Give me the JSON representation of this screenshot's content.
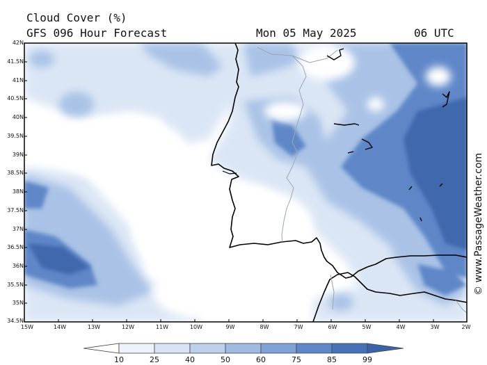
{
  "header": {
    "title": "Cloud Cover (%)",
    "subtitle": "GFS 096 Hour Forecast",
    "date": "Mon 05 May 2025",
    "time": "06 UTC"
  },
  "credit": "© www.PassageWeather.com",
  "map": {
    "lat_labels": [
      "42N",
      "41.5N",
      "41N",
      "40.5N",
      "40N",
      "39.5N",
      "39N",
      "38.5N",
      "38N",
      "37.5N",
      "37N",
      "36.5N",
      "36N",
      "35.5N",
      "35N",
      "34.5N"
    ],
    "lon_labels": [
      "15W",
      "14W",
      "13W",
      "12W",
      "11W",
      "10W",
      "9W",
      "8W",
      "7W",
      "6W",
      "5W",
      "4W",
      "3W",
      "2W"
    ],
    "land_color": "#000000"
  },
  "colorbar": {
    "labels": [
      "10",
      "25",
      "40",
      "50",
      "60",
      "75",
      "85",
      "99"
    ],
    "colors": [
      "#ffffff",
      "#eef3fb",
      "#d8e4f4",
      "#bccfeb",
      "#9fbbe2",
      "#7fa3d7",
      "#5f88c9",
      "#4672b8",
      "#3b63a8"
    ]
  }
}
